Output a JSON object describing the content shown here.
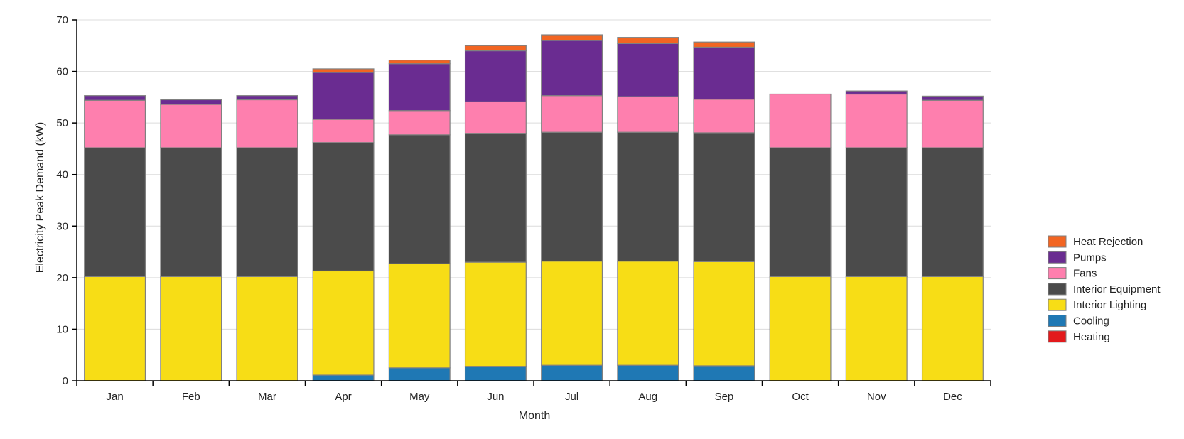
{
  "chart_data": {
    "type": "bar",
    "stacked": true,
    "title": "",
    "xlabel": "Month",
    "ylabel": "Electricity Peak Demand (kW)",
    "ylim": [
      0,
      70
    ],
    "yticks": [
      "0",
      "10",
      "20",
      "30",
      "40",
      "50",
      "60",
      "70"
    ],
    "grid": "horizontal",
    "legend_position": "right",
    "categories": [
      "Jan",
      "Feb",
      "Mar",
      "Apr",
      "May",
      "Jun",
      "Jul",
      "Aug",
      "Sep",
      "Oct",
      "Nov",
      "Dec"
    ],
    "series": [
      {
        "name": "Heating",
        "color": "#e31a1c",
        "values": [
          0,
          0,
          0,
          0,
          0,
          0,
          0,
          0,
          0,
          0,
          0,
          0
        ]
      },
      {
        "name": "Cooling",
        "color": "#1f78b4",
        "values": [
          0,
          0,
          0,
          1.1,
          2.5,
          2.8,
          3.0,
          3.0,
          2.9,
          0,
          0,
          0
        ]
      },
      {
        "name": "Interior Lighting",
        "color": "#f7dd16",
        "values": [
          20.2,
          20.2,
          20.2,
          20.2,
          20.2,
          20.2,
          20.2,
          20.2,
          20.2,
          20.2,
          20.2,
          20.2
        ]
      },
      {
        "name": "Interior Equipment",
        "color": "#4b4b4b",
        "values": [
          25.0,
          25.0,
          25.0,
          24.9,
          25.0,
          25.0,
          25.0,
          25.0,
          25.0,
          25.0,
          25.0,
          25.0
        ]
      },
      {
        "name": "Fans",
        "color": "#fe7fae",
        "values": [
          9.2,
          8.4,
          9.3,
          4.5,
          4.7,
          6.1,
          7.1,
          6.9,
          6.5,
          10.4,
          10.4,
          9.2
        ]
      },
      {
        "name": "Pumps",
        "color": "#6a2c91",
        "values": [
          0.9,
          0.9,
          0.8,
          9.1,
          9.1,
          9.9,
          10.7,
          10.3,
          10.1,
          0,
          0.6,
          0.8
        ]
      },
      {
        "name": "Heat Rejection",
        "color": "#f26522",
        "values": [
          0,
          0,
          0,
          0.7,
          0.7,
          1.0,
          1.1,
          1.2,
          1.0,
          0,
          0,
          0
        ]
      }
    ],
    "legend_order": [
      "Heat Rejection",
      "Pumps",
      "Fans",
      "Interior Equipment",
      "Interior Lighting",
      "Cooling",
      "Heating"
    ]
  }
}
